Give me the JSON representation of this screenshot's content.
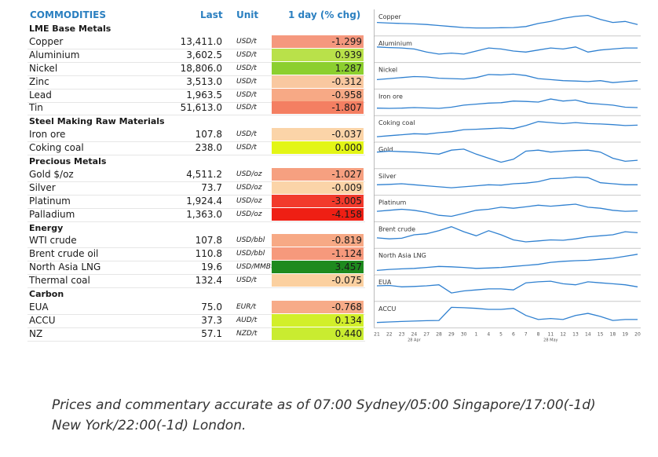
{
  "header": {
    "commodities": "COMMODITIES",
    "last": "Last",
    "unit": "Unit",
    "chg": "1 day (% chg)"
  },
  "rows": [
    {
      "type": "cat",
      "name": "LME Base Metals"
    },
    {
      "type": "item",
      "name": "Copper",
      "last": "13,411.0",
      "unit": "USD/t",
      "chg": "-1.299",
      "color": "#f5987e"
    },
    {
      "type": "item",
      "name": "Aluminium",
      "last": "3,602.5",
      "unit": "USD/t",
      "chg": "0.939",
      "color": "#b9e14a"
    },
    {
      "type": "item",
      "name": "Nickel",
      "last": "18,806.0",
      "unit": "USD/t",
      "chg": "1.287",
      "color": "#8ccf2f"
    },
    {
      "type": "item",
      "name": "Zinc",
      "last": "3,513.0",
      "unit": "USD/t",
      "chg": "-0.312",
      "color": "#f9c8a0"
    },
    {
      "type": "item",
      "name": "Lead",
      "last": "1,963.5",
      "unit": "USD/t",
      "chg": "-0.958",
      "color": "#f7a985"
    },
    {
      "type": "item",
      "name": "Tin",
      "last": "51,613.0",
      "unit": "USD/t",
      "chg": "-1.807",
      "color": "#f47f62"
    },
    {
      "type": "cat",
      "name": "Steel Making Raw Materials"
    },
    {
      "type": "item",
      "name": "Iron ore",
      "last": "107.8",
      "unit": "USD/t",
      "chg": "-0.037",
      "color": "#fbd4a8"
    },
    {
      "type": "item",
      "name": "Coking coal",
      "last": "238.0",
      "unit": "USD/t",
      "chg": "0.000",
      "color": "#e3f516"
    },
    {
      "type": "cat",
      "name": "Precious Metals"
    },
    {
      "type": "item",
      "name": "Gold $/oz",
      "last": "4,511.2",
      "unit": "USD/oz",
      "chg": "-1.027",
      "color": "#f6a080"
    },
    {
      "type": "item",
      "name": "Silver",
      "last": "73.7",
      "unit": "USD/oz",
      "chg": "-0.009",
      "color": "#fbd4a8"
    },
    {
      "type": "item",
      "name": "Platinum",
      "last": "1,924.4",
      "unit": "USD/oz",
      "chg": "-3.005",
      "color": "#f23a2c"
    },
    {
      "type": "item",
      "name": "Palladium",
      "last": "1,363.0",
      "unit": "USD/oz",
      "chg": "-4.158",
      "color": "#ef1f14"
    },
    {
      "type": "cat",
      "name": "Energy"
    },
    {
      "type": "item",
      "name": "WTI crude",
      "last": "107.8",
      "unit": "USD/bbl",
      "chg": "-0.819",
      "color": "#f7a985"
    },
    {
      "type": "item",
      "name": "Brent crude oil",
      "last": "110.8",
      "unit": "USD/bbl",
      "chg": "-1.124",
      "color": "#f6997c"
    },
    {
      "type": "item",
      "name": "North Asia LNG",
      "last": "19.6",
      "unit": "USD/MMBtu",
      "chg": "3.457",
      "color": "#1e8a1e"
    },
    {
      "type": "item",
      "name": "Thermal coal",
      "last": "132.4",
      "unit": "USD/t",
      "chg": "-0.075",
      "color": "#fbd0a0"
    },
    {
      "type": "cat",
      "name": "Carbon"
    },
    {
      "type": "item",
      "name": "EUA",
      "last": "75.0",
      "unit": "EUR/t",
      "chg": "-0.768",
      "color": "#f7ab88"
    },
    {
      "type": "item",
      "name": "ACCU",
      "last": "37.3",
      "unit": "AUD/t",
      "chg": "0.134",
      "color": "#d2ef2a"
    },
    {
      "type": "item",
      "name": "NZ",
      "last": "57.1",
      "unit": "NZD/t",
      "chg": "0.440",
      "color": "#c9ec30"
    }
  ],
  "chart_data": {
    "type": "line",
    "x": [
      "21",
      "22",
      "23",
      "24",
      "27",
      "28",
      "29",
      "30",
      "1",
      "4",
      "5",
      "6",
      "7",
      "8",
      "11",
      "12",
      "13",
      "14",
      "15",
      "18",
      "19",
      "20"
    ],
    "x_month_labels": [
      {
        "after": "24",
        "label": "28 Apr"
      },
      {
        "after": "11",
        "label": "28 May"
      }
    ],
    "line_color": "#2f80d0",
    "series": [
      {
        "name": "Copper",
        "values": [
          55,
          52,
          50,
          48,
          45,
          40,
          35,
          30,
          28,
          28,
          29,
          30,
          35,
          50,
          60,
          75,
          85,
          90,
          70,
          55,
          60,
          45
        ]
      },
      {
        "name": "Aluminium",
        "values": [
          65,
          62,
          60,
          55,
          40,
          30,
          35,
          30,
          45,
          60,
          55,
          45,
          40,
          50,
          60,
          55,
          65,
          40,
          50,
          55,
          60,
          60
        ]
      },
      {
        "name": "Nickel",
        "values": [
          35,
          40,
          45,
          50,
          48,
          42,
          40,
          38,
          45,
          60,
          58,
          62,
          55,
          40,
          35,
          30,
          28,
          25,
          30,
          20,
          25,
          30
        ]
      },
      {
        "name": "Iron ore",
        "values": [
          25,
          24,
          25,
          28,
          26,
          24,
          30,
          40,
          45,
          50,
          52,
          60,
          58,
          55,
          70,
          60,
          65,
          50,
          45,
          40,
          30,
          28
        ]
      },
      {
        "name": "Coking coal",
        "values": [
          15,
          20,
          25,
          30,
          28,
          35,
          40,
          50,
          52,
          55,
          58,
          55,
          70,
          90,
          85,
          80,
          85,
          80,
          78,
          75,
          70,
          72
        ]
      },
      {
        "name": "Gold",
        "values": [
          70,
          75,
          72,
          70,
          65,
          60,
          80,
          85,
          60,
          40,
          20,
          35,
          75,
          80,
          70,
          75,
          78,
          80,
          70,
          40,
          25,
          30
        ]
      },
      {
        "name": "Silver",
        "values": [
          40,
          42,
          45,
          40,
          35,
          30,
          25,
          30,
          35,
          40,
          38,
          45,
          48,
          55,
          70,
          72,
          78,
          75,
          50,
          45,
          40,
          40
        ]
      },
      {
        "name": "Platinum",
        "values": [
          40,
          45,
          50,
          45,
          35,
          20,
          15,
          30,
          45,
          50,
          60,
          55,
          62,
          70,
          65,
          70,
          75,
          60,
          55,
          45,
          40,
          42
        ]
      },
      {
        "name": "Brent crude",
        "values": [
          40,
          35,
          38,
          55,
          60,
          75,
          95,
          70,
          50,
          75,
          55,
          30,
          20,
          25,
          30,
          28,
          35,
          45,
          50,
          55,
          70,
          65
        ]
      },
      {
        "name": "North Asia LNG",
        "values": [
          10,
          15,
          18,
          20,
          25,
          30,
          28,
          25,
          20,
          22,
          25,
          30,
          35,
          40,
          50,
          55,
          58,
          60,
          65,
          70,
          80,
          90
        ]
      },
      {
        "name": "EUA",
        "values": [
          65,
          67,
          60,
          62,
          65,
          70,
          30,
          40,
          45,
          50,
          50,
          45,
          80,
          85,
          88,
          75,
          70,
          85,
          80,
          75,
          70,
          60
        ]
      },
      {
        "name": "ACCU",
        "values": [
          15,
          18,
          20,
          22,
          24,
          25,
          90,
          88,
          85,
          80,
          80,
          85,
          50,
          30,
          35,
          30,
          50,
          60,
          45,
          25,
          30,
          30
        ]
      }
    ]
  },
  "footnote": "Prices and commentary accurate as of 07:00 Sydney/05:00 Singapore/17:00(-1d) New York/22:00(-1d) London."
}
